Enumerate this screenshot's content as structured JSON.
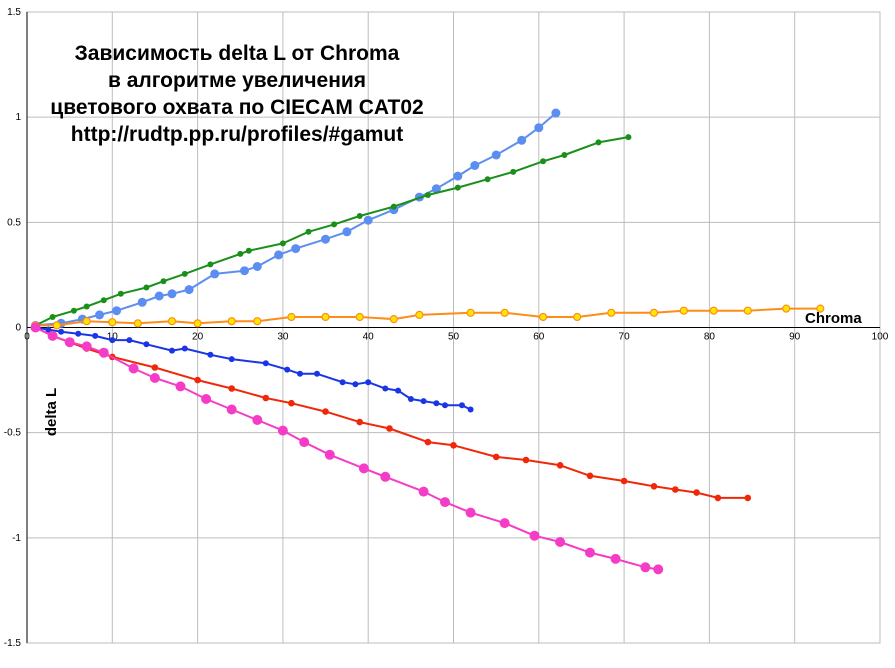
{
  "chart_data": {
    "type": "line",
    "title_lines": [
      "Зависимость delta L от Chroma",
      "в алгоритме увеличения",
      "цветового охвата по CIECAM CAT02",
      "http://rudtp.pp.ru/profiles/#gamut"
    ],
    "xlabel": "Chroma",
    "ylabel": "delta L",
    "xlim": [
      0,
      100
    ],
    "ylim": [
      -1.5,
      1.5
    ],
    "x_ticks": [
      "0",
      "10",
      "20",
      "30",
      "40",
      "50",
      "60",
      "70",
      "80",
      "90",
      "100"
    ],
    "y_ticks": [
      "1.5",
      "1",
      "0.5",
      "0",
      "-0.5",
      "-1",
      "-1.5"
    ],
    "grid": true,
    "colors": {
      "grid": "#bdbdbd",
      "axis": "#000000",
      "light_blue": "#5b8ef0",
      "green": "#1a8f1a",
      "orange": "#ff8c1a",
      "orange_marker_fill": "#ffe800",
      "blue": "#1a35e6",
      "red": "#f0280a",
      "pink": "#f53cc6"
    },
    "series": [
      {
        "color_key": "light_blue",
        "marker_radius": 4.5,
        "marker_fill_key": "light_blue",
        "line_width": 2,
        "points": [
          [
            1,
            0.01
          ],
          [
            4,
            0.02
          ],
          [
            6.5,
            0.04
          ],
          [
            8.5,
            0.06
          ],
          [
            10.5,
            0.08
          ],
          [
            13.5,
            0.12
          ],
          [
            15.5,
            0.15
          ],
          [
            17,
            0.16
          ],
          [
            19,
            0.18
          ],
          [
            22,
            0.255
          ],
          [
            25.5,
            0.27
          ],
          [
            27,
            0.29
          ],
          [
            29.5,
            0.345
          ],
          [
            31.5,
            0.375
          ],
          [
            35,
            0.42
          ],
          [
            37.5,
            0.455
          ],
          [
            40,
            0.51
          ],
          [
            43,
            0.56
          ],
          [
            46,
            0.62
          ],
          [
            48,
            0.66
          ],
          [
            50.5,
            0.72
          ],
          [
            52.5,
            0.77
          ],
          [
            55,
            0.82
          ],
          [
            58,
            0.89
          ],
          [
            60,
            0.95
          ],
          [
            62,
            1.02
          ]
        ]
      },
      {
        "color_key": "green",
        "marker_radius": 3,
        "marker_fill_key": "green",
        "line_width": 2,
        "points": [
          [
            1,
            0.01
          ],
          [
            3,
            0.05
          ],
          [
            5.5,
            0.08
          ],
          [
            7,
            0.1
          ],
          [
            9,
            0.13
          ],
          [
            11,
            0.16
          ],
          [
            14,
            0.19
          ],
          [
            16,
            0.22
          ],
          [
            18.5,
            0.255
          ],
          [
            21.5,
            0.3
          ],
          [
            25,
            0.35
          ],
          [
            26,
            0.365
          ],
          [
            30,
            0.4
          ],
          [
            33,
            0.455
          ],
          [
            36,
            0.49
          ],
          [
            39,
            0.53
          ],
          [
            43,
            0.575
          ],
          [
            47,
            0.63
          ],
          [
            50.5,
            0.665
          ],
          [
            54,
            0.705
          ],
          [
            57,
            0.74
          ],
          [
            60.5,
            0.79
          ],
          [
            63,
            0.82
          ],
          [
            67,
            0.88
          ],
          [
            70.5,
            0.905
          ]
        ]
      },
      {
        "color_key": "orange",
        "marker_radius": 3.5,
        "marker_fill_key": "orange_marker_fill",
        "line_width": 2,
        "points": [
          [
            1,
            0.01
          ],
          [
            3.5,
            0.01
          ],
          [
            7,
            0.03
          ],
          [
            10,
            0.025
          ],
          [
            13,
            0.02
          ],
          [
            17,
            0.03
          ],
          [
            20,
            0.02
          ],
          [
            24,
            0.03
          ],
          [
            27,
            0.03
          ],
          [
            31,
            0.05
          ],
          [
            35,
            0.05
          ],
          [
            39,
            0.05
          ],
          [
            43,
            0.04
          ],
          [
            46,
            0.06
          ],
          [
            52,
            0.07
          ],
          [
            56,
            0.07
          ],
          [
            60.5,
            0.05
          ],
          [
            64.5,
            0.05
          ],
          [
            68.5,
            0.07
          ],
          [
            73.5,
            0.07
          ],
          [
            77,
            0.08
          ],
          [
            80.5,
            0.08
          ],
          [
            84.5,
            0.08
          ],
          [
            89,
            0.09
          ],
          [
            93,
            0.09
          ]
        ]
      },
      {
        "color_key": "blue",
        "marker_radius": 3,
        "marker_fill_key": "blue",
        "line_width": 2,
        "points": [
          [
            1,
            0.0
          ],
          [
            2.5,
            -0.01
          ],
          [
            4,
            -0.02
          ],
          [
            6,
            -0.03
          ],
          [
            8,
            -0.04
          ],
          [
            10,
            -0.06
          ],
          [
            12,
            -0.06
          ],
          [
            14,
            -0.08
          ],
          [
            17,
            -0.11
          ],
          [
            18.5,
            -0.1
          ],
          [
            21.5,
            -0.13
          ],
          [
            24,
            -0.15
          ],
          [
            28,
            -0.17
          ],
          [
            30.5,
            -0.2
          ],
          [
            32,
            -0.22
          ],
          [
            34,
            -0.22
          ],
          [
            37,
            -0.26
          ],
          [
            38.5,
            -0.27
          ],
          [
            40,
            -0.26
          ],
          [
            42,
            -0.29
          ],
          [
            43.5,
            -0.3
          ],
          [
            45,
            -0.34
          ],
          [
            46.5,
            -0.35
          ],
          [
            48,
            -0.36
          ],
          [
            49,
            -0.37
          ],
          [
            51,
            -0.37
          ],
          [
            52,
            -0.39
          ]
        ]
      },
      {
        "color_key": "red",
        "marker_radius": 3.3,
        "marker_fill_key": "red",
        "line_width": 2,
        "points": [
          [
            1,
            0.0
          ],
          [
            3,
            -0.04
          ],
          [
            5,
            -0.07
          ],
          [
            7,
            -0.1
          ],
          [
            10,
            -0.14
          ],
          [
            15,
            -0.19
          ],
          [
            20,
            -0.25
          ],
          [
            24,
            -0.29
          ],
          [
            28,
            -0.335
          ],
          [
            31,
            -0.36
          ],
          [
            35,
            -0.4
          ],
          [
            39,
            -0.45
          ],
          [
            42.5,
            -0.48
          ],
          [
            47,
            -0.545
          ],
          [
            50,
            -0.56
          ],
          [
            55,
            -0.615
          ],
          [
            58.5,
            -0.63
          ],
          [
            62.5,
            -0.655
          ],
          [
            66,
            -0.705
          ],
          [
            70,
            -0.73
          ],
          [
            73.5,
            -0.755
          ],
          [
            76,
            -0.77
          ],
          [
            78.5,
            -0.785
          ],
          [
            81,
            -0.81
          ],
          [
            84.5,
            -0.81
          ]
        ]
      },
      {
        "color_key": "pink",
        "marker_radius": 5,
        "marker_fill_key": "pink",
        "line_width": 2,
        "points": [
          [
            1,
            0.0
          ],
          [
            3,
            -0.04
          ],
          [
            5,
            -0.07
          ],
          [
            7,
            -0.09
          ],
          [
            9,
            -0.12
          ],
          [
            12.5,
            -0.195
          ],
          [
            15,
            -0.24
          ],
          [
            18,
            -0.28
          ],
          [
            21,
            -0.34
          ],
          [
            24,
            -0.39
          ],
          [
            27,
            -0.44
          ],
          [
            30,
            -0.49
          ],
          [
            32.5,
            -0.545
          ],
          [
            35.5,
            -0.605
          ],
          [
            39.5,
            -0.67
          ],
          [
            42,
            -0.71
          ],
          [
            46.5,
            -0.78
          ],
          [
            49,
            -0.83
          ],
          [
            52,
            -0.88
          ],
          [
            56,
            -0.93
          ],
          [
            59.5,
            -0.99
          ],
          [
            62.5,
            -1.02
          ],
          [
            66,
            -1.07
          ],
          [
            69,
            -1.1
          ],
          [
            72.5,
            -1.14
          ],
          [
            74,
            -1.15
          ]
        ]
      }
    ]
  }
}
